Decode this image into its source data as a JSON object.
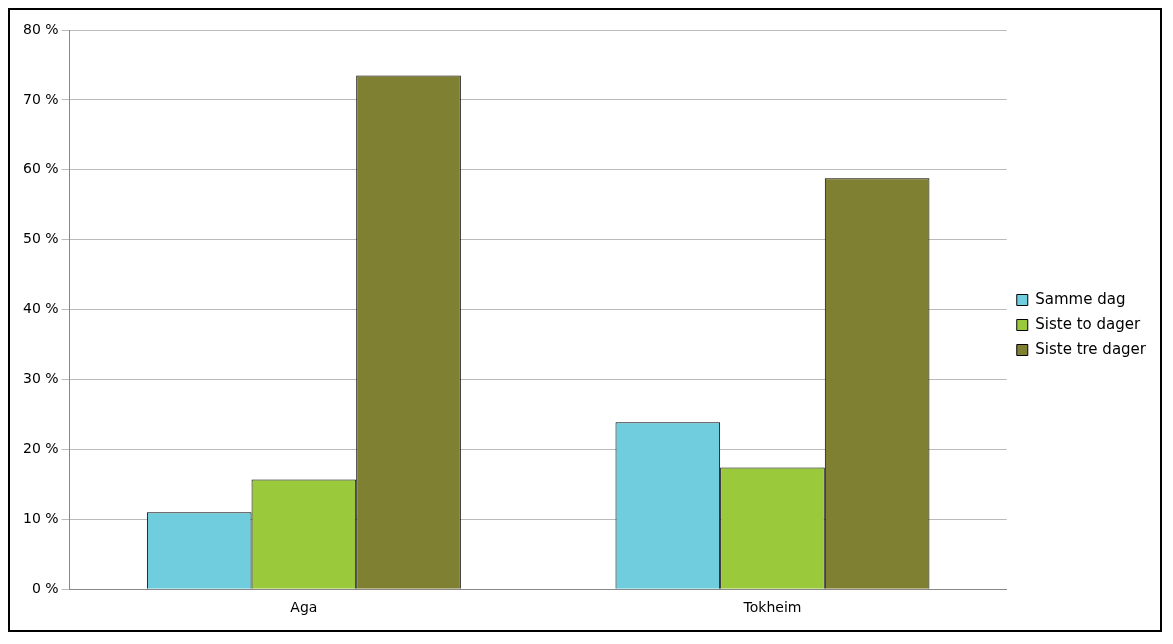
{
  "chart_data": {
    "type": "bar",
    "categories": [
      "Aga",
      "Tokheim"
    ],
    "series": [
      {
        "name": "Samme dag",
        "color": "#70cddd",
        "values": [
          11,
          23.9
        ]
      },
      {
        "name": "Siste to dager",
        "color": "#9aca3c",
        "values": [
          15.7,
          17.4
        ]
      },
      {
        "name": "Siste tre dager",
        "color": "#808033",
        "values": [
          73.5,
          58.8
        ]
      }
    ],
    "ylim": [
      0,
      80
    ],
    "yticks": [
      {
        "value": 0,
        "label": "0 %"
      },
      {
        "value": 10,
        "label": "10 %"
      },
      {
        "value": 20,
        "label": "20 %"
      },
      {
        "value": 30,
        "label": "30 %"
      },
      {
        "value": 40,
        "label": "40 %"
      },
      {
        "value": 50,
        "label": "50 %"
      },
      {
        "value": 60,
        "label": "60 %"
      },
      {
        "value": 70,
        "label": "70 %"
      },
      {
        "value": 80,
        "label": "80 %"
      }
    ],
    "grid": "y",
    "legend": "right"
  }
}
